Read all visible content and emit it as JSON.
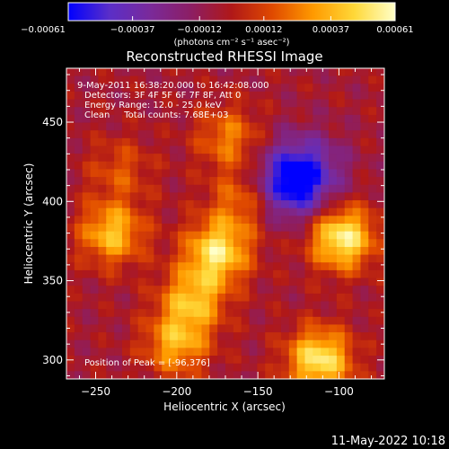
{
  "chart_data": {
    "type": "heatmap",
    "title": "Reconstructed RHESSI Image",
    "xlabel": "Heliocentric X (arcsec)",
    "ylabel": "Heliocentric Y (arcsec)",
    "xlim": [
      -268,
      -72
    ],
    "ylim": [
      288,
      484
    ],
    "xticks": [
      -250,
      -200,
      -150,
      -100
    ],
    "yticks": [
      300,
      350,
      400,
      450
    ],
    "colorbar": {
      "min": -0.00061,
      "max": 0.00061,
      "ticks": [
        "-0.00061",
        "-0.00037",
        "-0.00012",
        "0.00012",
        "0.00037",
        "0.00061"
      ],
      "label": "(photons cm⁻² s⁻¹ asec⁻²)"
    },
    "colormap": [
      "#0000ff",
      "#5a2ec8",
      "#7a2a9a",
      "#8c1e64",
      "#b01818",
      "#e04a00",
      "#ff9a00",
      "#ffd838",
      "#ffffc8"
    ],
    "annotations": [
      "9-May-2011 16:38:20.000 to 16:42:08.000",
      "Detectors: 3F 4F 5F 6F 7F 8F, Att 0",
      "Energy Range: 12.0 - 25.0 keV",
      "Clean     Total counts: 7.68E+03"
    ],
    "peak_label": "Position of Peak = [-96,376]",
    "sources": [
      {
        "x": -175,
        "y": 368,
        "intensity": 0.00055
      },
      {
        "x": -98,
        "y": 377,
        "intensity": 0.00061
      },
      {
        "x": -112,
        "y": 300,
        "intensity": 0.00058
      },
      {
        "x": -240,
        "y": 380,
        "intensity": 0.00045
      },
      {
        "x": -190,
        "y": 338,
        "intensity": 0.00042
      },
      {
        "x": -200,
        "y": 310,
        "intensity": 0.0004
      },
      {
        "x": -168,
        "y": 440,
        "intensity": 0.0003
      },
      {
        "x": -160,
        "y": 400,
        "intensity": 0.00028
      },
      {
        "x": -235,
        "y": 420,
        "intensity": 0.0002
      }
    ],
    "negative_regions": [
      {
        "x": -130,
        "y": 410,
        "intensity": -0.00045
      },
      {
        "x": -120,
        "y": 420,
        "intensity": -0.0003
      }
    ]
  },
  "footer_date": "11-May-2022 10:18"
}
